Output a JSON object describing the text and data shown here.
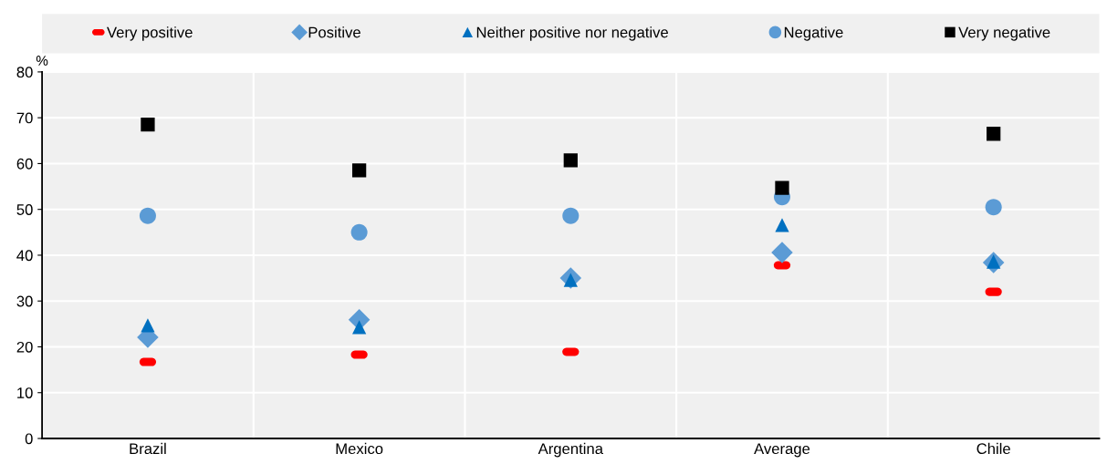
{
  "chart_data": {
    "type": "scatter",
    "ylabel": "%",
    "categories": [
      "Brazil",
      "Mexico",
      "Argentina",
      "Average",
      "Chile"
    ],
    "series": [
      {
        "name": "Very positive",
        "color": "#ff0000",
        "values": [
          16.7,
          18.3,
          18.9,
          37.8,
          32.0
        ]
      },
      {
        "name": "Positive",
        "color": "#5b9bd5",
        "marker": "diamond",
        "values": [
          22.1,
          25.9,
          35.0,
          40.6,
          38.4
        ]
      },
      {
        "name": "Neither positive nor negative",
        "color": "#0070c0",
        "marker": "triangle",
        "values": [
          24.7,
          24.3,
          34.6,
          46.6,
          38.6
        ]
      },
      {
        "name": "Negative",
        "color": "#5b9bd5",
        "marker": "circle",
        "values": [
          48.6,
          45.0,
          48.6,
          52.7,
          50.5
        ]
      },
      {
        "name": "Very negative",
        "color": "#000000",
        "marker": "square",
        "values": [
          68.5,
          58.5,
          60.7,
          54.7,
          66.5
        ]
      }
    ],
    "ylim": [
      0,
      80
    ],
    "yticks": [
      0,
      10,
      20,
      30,
      40,
      50,
      60,
      70,
      80
    ],
    "grid": true,
    "legend": "top"
  }
}
